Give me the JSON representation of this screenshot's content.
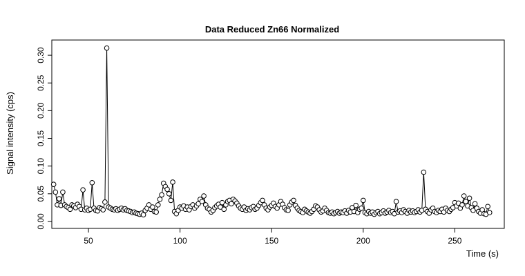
{
  "chart_data": {
    "type": "scatter",
    "title": "Data Reduced Zn66 Normalized",
    "x_label": "Time (s)",
    "y_label": "Signal intensity (cps)",
    "x": [
      31,
      32,
      33,
      34,
      35,
      36,
      37,
      38,
      39,
      40,
      41,
      42,
      43,
      44,
      45,
      46,
      47,
      48,
      49,
      50,
      51,
      52,
      53,
      54,
      55,
      56,
      57,
      58,
      59,
      60,
      61,
      62,
      63,
      64,
      65,
      66,
      67,
      68,
      69,
      70,
      71,
      72,
      73,
      74,
      75,
      76,
      77,
      78,
      79,
      80,
      81,
      82,
      83,
      84,
      85,
      86,
      87,
      88,
      89,
      90,
      91,
      92,
      93,
      94,
      95,
      96,
      97,
      98,
      99,
      100,
      101,
      102,
      103,
      104,
      105,
      106,
      107,
      108,
      109,
      110,
      111,
      112,
      113,
      114,
      115,
      116,
      117,
      118,
      119,
      120,
      121,
      122,
      123,
      124,
      125,
      126,
      127,
      128,
      129,
      130,
      131,
      132,
      133,
      134,
      135,
      136,
      137,
      138,
      139,
      140,
      141,
      142,
      143,
      144,
      145,
      146,
      147,
      148,
      149,
      150,
      151,
      152,
      153,
      154,
      155,
      156,
      157,
      158,
      159,
      160,
      161,
      162,
      163,
      164,
      165,
      166,
      167,
      168,
      169,
      170,
      171,
      172,
      173,
      174,
      175,
      176,
      177,
      178,
      179,
      180,
      181,
      182,
      183,
      184,
      185,
      186,
      187,
      188,
      189,
      190,
      191,
      192,
      193,
      194,
      195,
      196,
      197,
      198,
      199,
      200,
      201,
      202,
      203,
      204,
      205,
      206,
      207,
      208,
      209,
      210,
      211,
      212,
      213,
      214,
      215,
      216,
      217,
      218,
      219,
      220,
      221,
      222,
      223,
      224,
      225,
      226,
      227,
      228,
      229,
      230,
      231,
      232,
      233,
      234,
      235,
      236,
      237,
      238,
      239,
      240,
      241,
      242,
      243,
      244,
      245,
      246,
      247,
      248,
      249,
      250,
      251,
      252,
      253,
      254,
      255,
      256,
      257,
      258,
      259,
      260,
      261,
      262,
      263,
      264,
      265,
      266,
      267,
      268,
      269
    ],
    "values": [
      0.067,
      0.053,
      0.03,
      0.041,
      0.029,
      0.053,
      0.03,
      0.027,
      0.025,
      0.022,
      0.03,
      0.028,
      0.025,
      0.031,
      0.027,
      0.022,
      0.057,
      0.021,
      0.024,
      0.02,
      0.022,
      0.07,
      0.024,
      0.02,
      0.019,
      0.025,
      0.023,
      0.021,
      0.035,
      0.313,
      0.026,
      0.024,
      0.022,
      0.021,
      0.023,
      0.02,
      0.022,
      0.024,
      0.021,
      0.023,
      0.02,
      0.019,
      0.018,
      0.016,
      0.017,
      0.015,
      0.014,
      0.013,
      0.015,
      0.012,
      0.02,
      0.024,
      0.03,
      0.022,
      0.026,
      0.018,
      0.017,
      0.03,
      0.04,
      0.048,
      0.069,
      0.063,
      0.058,
      0.05,
      0.038,
      0.071,
      0.018,
      0.014,
      0.02,
      0.026,
      0.024,
      0.028,
      0.022,
      0.026,
      0.021,
      0.027,
      0.03,
      0.024,
      0.028,
      0.032,
      0.04,
      0.036,
      0.046,
      0.03,
      0.024,
      0.022,
      0.017,
      0.02,
      0.025,
      0.028,
      0.031,
      0.026,
      0.034,
      0.022,
      0.03,
      0.036,
      0.038,
      0.032,
      0.04,
      0.037,
      0.033,
      0.028,
      0.024,
      0.022,
      0.026,
      0.02,
      0.023,
      0.021,
      0.025,
      0.027,
      0.022,
      0.024,
      0.029,
      0.034,
      0.038,
      0.03,
      0.024,
      0.021,
      0.026,
      0.029,
      0.033,
      0.027,
      0.024,
      0.03,
      0.036,
      0.031,
      0.025,
      0.021,
      0.02,
      0.03,
      0.035,
      0.038,
      0.029,
      0.024,
      0.02,
      0.018,
      0.016,
      0.022,
      0.019,
      0.017,
      0.015,
      0.018,
      0.022,
      0.028,
      0.026,
      0.021,
      0.017,
      0.019,
      0.024,
      0.02,
      0.016,
      0.015,
      0.017,
      0.014,
      0.016,
      0.018,
      0.015,
      0.017,
      0.016,
      0.019,
      0.015,
      0.02,
      0.017,
      0.025,
      0.018,
      0.029,
      0.016,
      0.022,
      0.024,
      0.038,
      0.016,
      0.014,
      0.018,
      0.015,
      0.017,
      0.013,
      0.016,
      0.018,
      0.014,
      0.016,
      0.019,
      0.015,
      0.017,
      0.02,
      0.016,
      0.018,
      0.014,
      0.036,
      0.017,
      0.019,
      0.016,
      0.021,
      0.018,
      0.015,
      0.02,
      0.017,
      0.019,
      0.016,
      0.018,
      0.021,
      0.017,
      0.02,
      0.089,
      0.022,
      0.018,
      0.015,
      0.021,
      0.024,
      0.018,
      0.016,
      0.02,
      0.018,
      0.022,
      0.017,
      0.024,
      0.02,
      0.018,
      0.022,
      0.025,
      0.034,
      0.028,
      0.033,
      0.024,
      0.03,
      0.046,
      0.036,
      0.028,
      0.042,
      0.025,
      0.02,
      0.032,
      0.024,
      0.018,
      0.015,
      0.021,
      0.014,
      0.013,
      0.027,
      0.016
    ],
    "color": "#000000",
    "xlim": [
      30,
      277
    ],
    "ylim": [
      -0.0125,
      0.3275
    ],
    "xticks": [
      50,
      100,
      150,
      200,
      250
    ],
    "yticks": [
      {
        "value": 0,
        "label": "0.00"
      },
      {
        "value": 0.05,
        "label": "0.05"
      },
      {
        "value": 0.1,
        "label": "0.10"
      },
      {
        "value": 0.15,
        "label": "0.15"
      },
      {
        "value": 0.2,
        "label": "0.20"
      },
      {
        "value": 0.25,
        "label": "0.25"
      },
      {
        "value": 0.3,
        "label": "0.30"
      }
    ]
  }
}
